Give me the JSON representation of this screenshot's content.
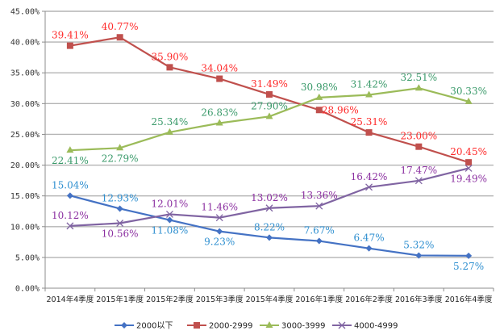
{
  "chart_data": {
    "type": "line",
    "title": "",
    "xlabel": "",
    "ylabel": "",
    "ylim": [
      0,
      45
    ],
    "y_ticks": [
      "0.00%",
      "5.00%",
      "10.00%",
      "15.00%",
      "20.00%",
      "25.00%",
      "30.00%",
      "35.00%",
      "40.00%",
      "45.00%"
    ],
    "y_tick_values": [
      0,
      5,
      10,
      15,
      20,
      25,
      30,
      35,
      40,
      45
    ],
    "grid": true,
    "legend_position": "bottom",
    "categories": [
      "2014年4季度",
      "2015年1季度",
      "2015年2季度",
      "2015年3季度",
      "2015年4季度",
      "2016年1季度",
      "2016年2季度",
      "2016年3季度",
      "2016年4季度"
    ],
    "series": [
      {
        "name": "2000以下",
        "color": "#4472C4",
        "label_color": "#2E8FD0",
        "marker": "diamond",
        "values": [
          15.04,
          12.93,
          11.08,
          9.23,
          8.22,
          7.67,
          6.47,
          5.32,
          5.27
        ],
        "labels": [
          "15.04%",
          "12.93%",
          "11.08%",
          "9.23%",
          "8.22%",
          "7.67%",
          "6.47%",
          "5.32%",
          "5.27%"
        ]
      },
      {
        "name": "2000-2999",
        "color": "#C0504D",
        "label_color": "#FF2A2A",
        "marker": "square",
        "values": [
          39.41,
          40.77,
          35.9,
          34.04,
          31.49,
          28.96,
          25.31,
          23.0,
          20.45
        ],
        "labels": [
          "39.41%",
          "40.77%",
          "35.90%",
          "34.04%",
          "31.49%",
          "28.96%",
          "25.31%",
          "23.00%",
          "20.45%"
        ]
      },
      {
        "name": "3000-3999",
        "color": "#9BBB59",
        "label_color": "#3A9A6A",
        "marker": "triangle",
        "values": [
          22.41,
          22.79,
          25.34,
          26.83,
          27.9,
          30.98,
          31.42,
          32.51,
          30.33
        ],
        "labels": [
          "22.41%",
          "22.79%",
          "25.34%",
          "26.83%",
          "27.90%",
          "30.98%",
          "31.42%",
          "32.51%",
          "30.33%"
        ]
      },
      {
        "name": "4000-4999",
        "color": "#8064A2",
        "label_color": "#8B2FA0",
        "marker": "x",
        "values": [
          10.12,
          10.56,
          12.01,
          11.46,
          13.02,
          13.36,
          16.42,
          17.47,
          19.49
        ],
        "labels": [
          "10.12%",
          "10.56%",
          "12.01%",
          "11.46%",
          "13.02%",
          "13.36%",
          "16.42%",
          "17.47%",
          "19.49%"
        ]
      }
    ]
  }
}
